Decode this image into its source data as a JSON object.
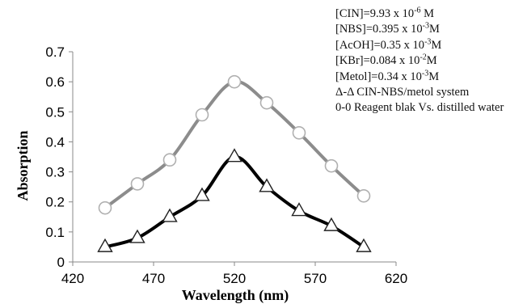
{
  "chart_data": {
    "type": "line",
    "xlabel": "Wavelength (nm)",
    "ylabel": "Absorption",
    "xlim": [
      420,
      620
    ],
    "ylim": [
      0,
      0.7
    ],
    "xticks": [
      "420",
      "470",
      "520",
      "570",
      "620"
    ],
    "yticks": [
      "0",
      "0.1",
      "0.2",
      "0.3",
      "0.4",
      "0.5",
      "0.6",
      "0.7"
    ],
    "grid": false,
    "legend_position": "top-right",
    "legend_lines": [
      {
        "text": "[CIN]=9.93 x 10",
        "sup": "-6",
        "tail": " M"
      },
      {
        "text": "[NBS]=0.395 x 10",
        "sup": "-3",
        "tail": "M"
      },
      {
        "text": "[AcOH]=0.35 x 10",
        "sup": "-3",
        "tail": "M"
      },
      {
        "text": "[KBr]=0.084 x 10",
        "sup": "-2",
        "tail": "M"
      },
      {
        "text": "[Metol]=0.34 x 10",
        "sup": "-3",
        "tail": "M"
      },
      {
        "text": "Δ-Δ CIN-NBS/metol  system",
        "sup": "",
        "tail": ""
      },
      {
        "text": "0-0 Reagent blak Vs. distilled water",
        "sup": "",
        "tail": ""
      }
    ],
    "series": [
      {
        "marker": "circle",
        "color": "#8c8c8c",
        "x": [
          440,
          460,
          480,
          500,
          520,
          540,
          560,
          580,
          600
        ],
        "y": [
          0.18,
          0.26,
          0.34,
          0.49,
          0.6,
          0.53,
          0.43,
          0.32,
          0.22
        ]
      },
      {
        "marker": "triangle",
        "color": "#000000",
        "x": [
          440,
          460,
          480,
          500,
          520,
          540,
          560,
          580,
          600
        ],
        "y": [
          0.05,
          0.08,
          0.15,
          0.22,
          0.35,
          0.25,
          0.17,
          0.12,
          0.05
        ]
      }
    ]
  }
}
